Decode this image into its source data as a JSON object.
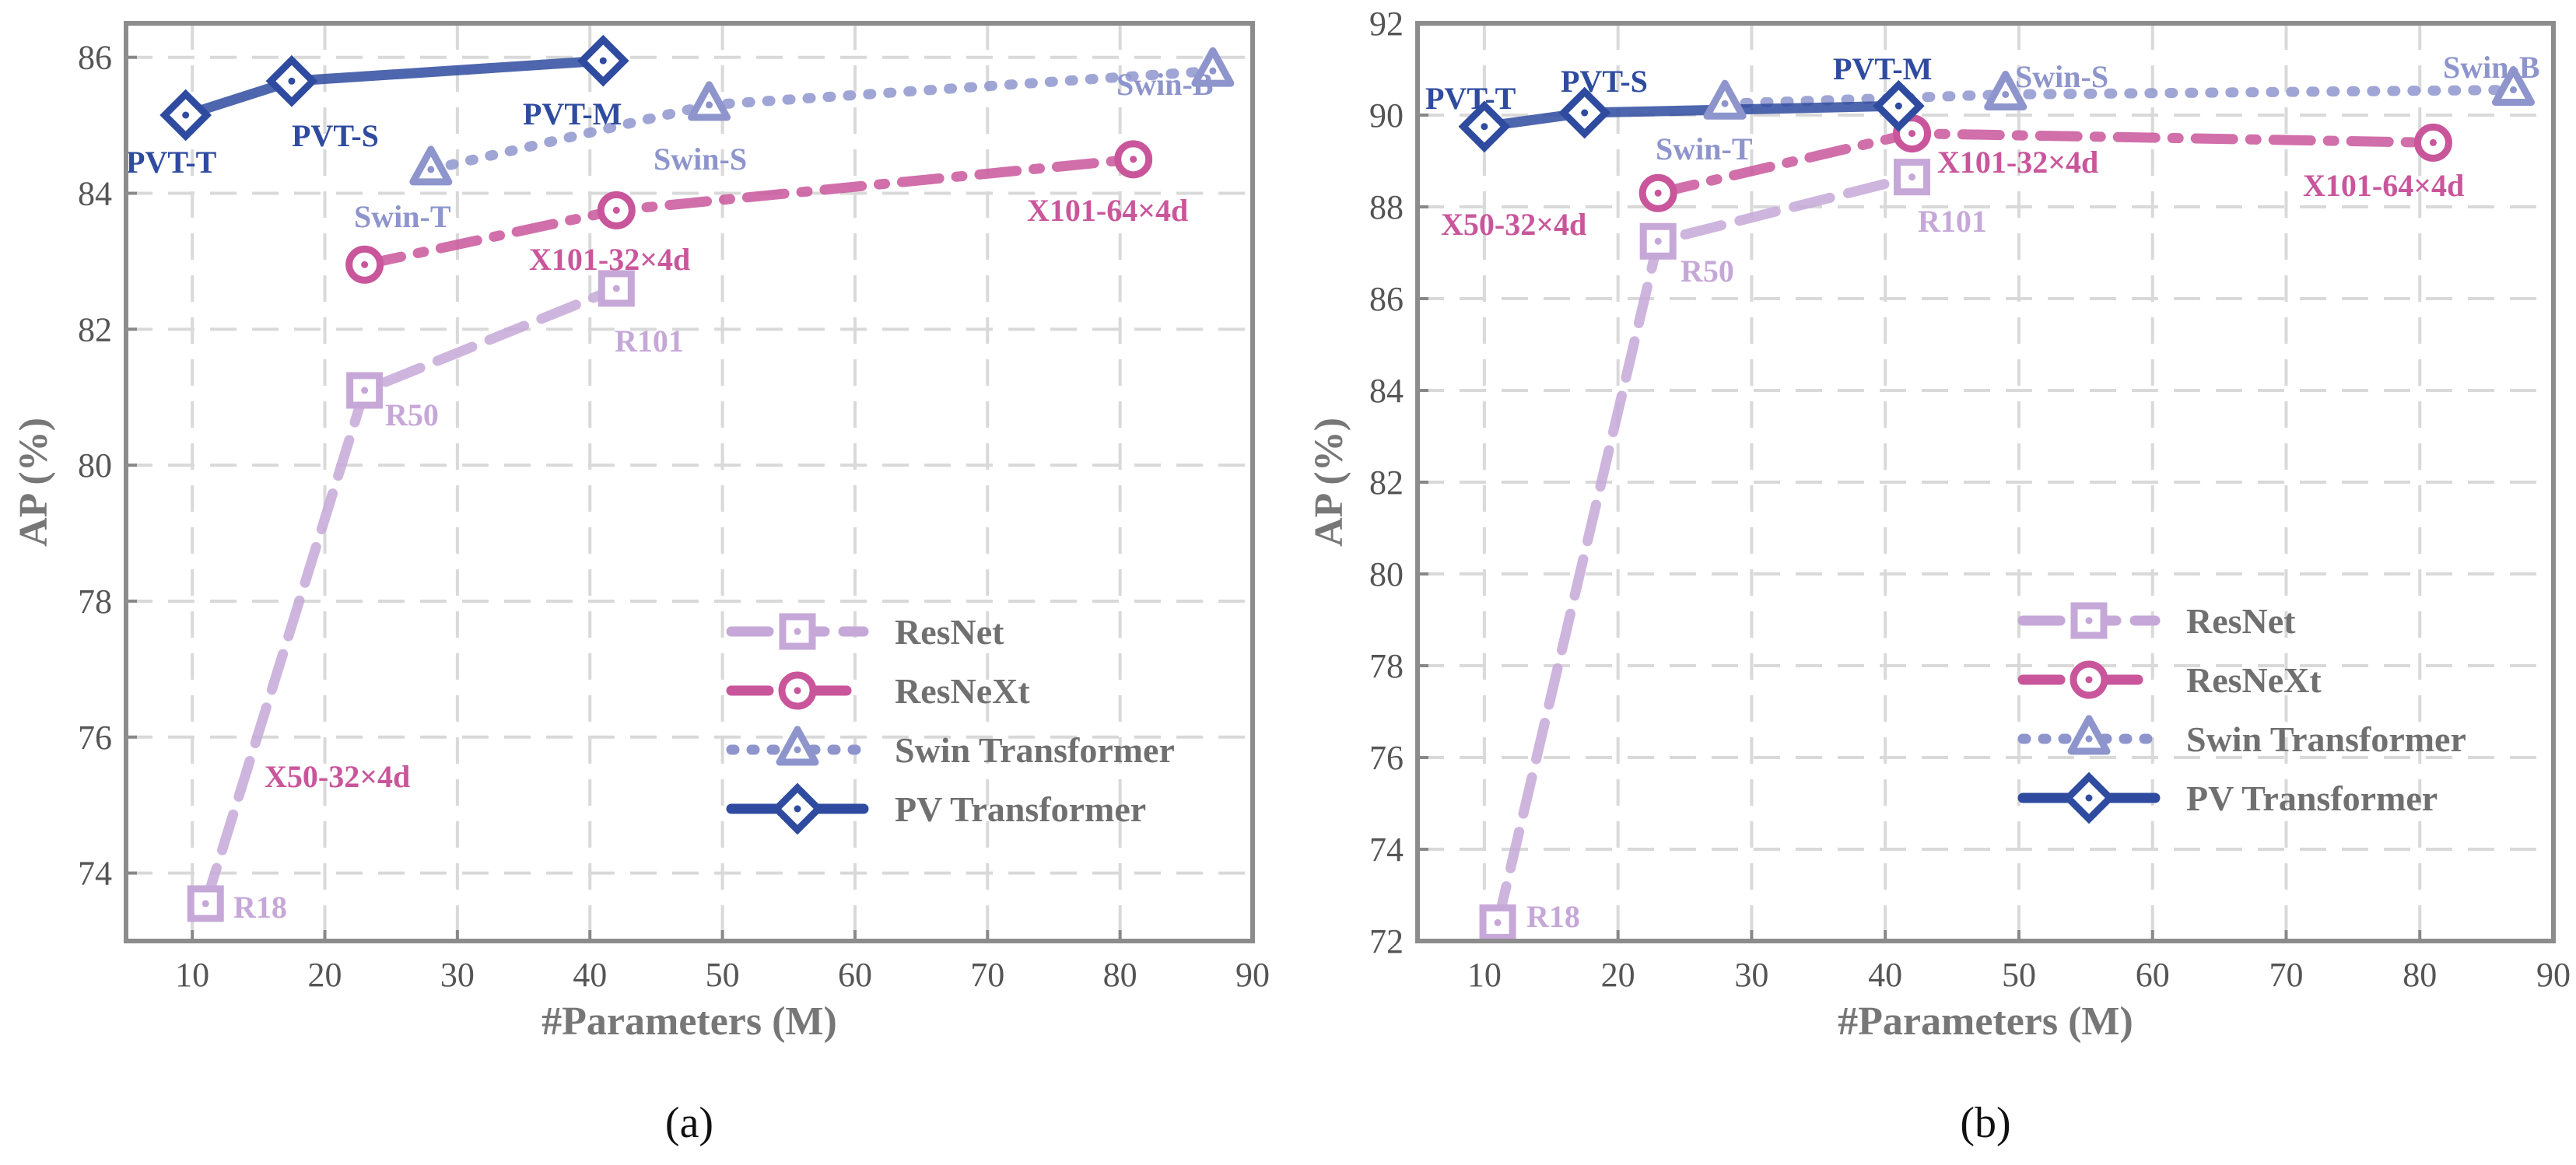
{
  "chart_data": [
    {
      "type": "line",
      "caption": "(a)",
      "xlabel": "#Parameters (M)",
      "ylabel": "AP (%)",
      "xlim": [
        5,
        90
      ],
      "ylim": [
        73,
        86.5
      ],
      "x_ticks": [
        "10",
        "20",
        "30",
        "40",
        "50",
        "60",
        "70",
        "80",
        "90"
      ],
      "y_ticks": [
        "74",
        "76",
        "78",
        "80",
        "82",
        "84",
        "86"
      ],
      "grid": true,
      "legend_position": "lower-right",
      "series": [
        {
          "name": "ResNet",
          "color": "#c6a8d8",
          "marker": "square",
          "dash": "dashed",
          "points": [
            {
              "x": 11,
              "y": 73.55,
              "label": "R18"
            },
            {
              "x": 23,
              "y": 81.1,
              "label": "R50"
            },
            {
              "x": 42,
              "y": 82.6,
              "label": "R101"
            }
          ]
        },
        {
          "name": "ResNeXt",
          "color": "#c9569b",
          "marker": "circle",
          "dash": "dashdot",
          "points": [
            {
              "x": 23,
              "y": 82.95,
              "label": "X50-32×4d"
            },
            {
              "x": 42,
              "y": 83.75,
              "label": "X101-32×4d"
            },
            {
              "x": 81,
              "y": 84.5,
              "label": "X101-64×4d"
            }
          ]
        },
        {
          "name": "Swin Transformer",
          "color": "#8e95cc",
          "marker": "triangle",
          "dash": "dotted",
          "points": [
            {
              "x": 28,
              "y": 84.35,
              "label": "Swin-T"
            },
            {
              "x": 49,
              "y": 85.3,
              "label": "Swin-S"
            },
            {
              "x": 87,
              "y": 85.8,
              "label": "Swin-B"
            }
          ]
        },
        {
          "name": "PV Transformer",
          "color": "#2f4b9f",
          "marker": "diamond",
          "dash": "solid",
          "points": [
            {
              "x": 9.5,
              "y": 85.15,
              "label": "PVT-T"
            },
            {
              "x": 17.5,
              "y": 85.65,
              "label": "PVT-S"
            },
            {
              "x": 41,
              "y": 85.95,
              "label": "PVT-M"
            }
          ]
        }
      ]
    },
    {
      "type": "line",
      "caption": "(b)",
      "xlabel": "#Parameters (M)",
      "ylabel": "AP (%)",
      "xlim": [
        5,
        90
      ],
      "ylim": [
        72,
        92
      ],
      "x_ticks": [
        "10",
        "20",
        "30",
        "40",
        "50",
        "60",
        "70",
        "80",
        "90"
      ],
      "y_ticks": [
        "72",
        "74",
        "76",
        "78",
        "80",
        "82",
        "84",
        "86",
        "88",
        "90",
        "92"
      ],
      "grid": true,
      "legend_position": "lower-right",
      "series": [
        {
          "name": "ResNet",
          "color": "#c6a8d8",
          "marker": "square",
          "dash": "dashed",
          "points": [
            {
              "x": 11,
              "y": 72.4,
              "label": "R18"
            },
            {
              "x": 23,
              "y": 87.25,
              "label": "R50"
            },
            {
              "x": 42,
              "y": 88.65,
              "label": "R101"
            }
          ]
        },
        {
          "name": "ResNeXt",
          "color": "#c9569b",
          "marker": "circle",
          "dash": "dashdot",
          "points": [
            {
              "x": 23,
              "y": 88.3,
              "label": "X50-32×4d"
            },
            {
              "x": 42,
              "y": 89.6,
              "label": "X101-32×4d"
            },
            {
              "x": 81,
              "y": 89.4,
              "label": "X101-64×4d"
            }
          ]
        },
        {
          "name": "Swin Transformer",
          "color": "#8e95cc",
          "marker": "triangle",
          "dash": "dotted",
          "points": [
            {
              "x": 28,
              "y": 90.25,
              "label": "Swin-T"
            },
            {
              "x": 49,
              "y": 90.45,
              "label": "Swin-S"
            },
            {
              "x": 87,
              "y": 90.55,
              "label": "Swin-B"
            }
          ]
        },
        {
          "name": "PV Transformer",
          "color": "#2f4b9f",
          "marker": "diamond",
          "dash": "solid",
          "points": [
            {
              "x": 10,
              "y": 89.75,
              "label": "PVT-T"
            },
            {
              "x": 17.5,
              "y": 90.05,
              "label": "PVT-S"
            },
            {
              "x": 41,
              "y": 90.2,
              "label": "PVT-M"
            }
          ]
        }
      ]
    }
  ]
}
